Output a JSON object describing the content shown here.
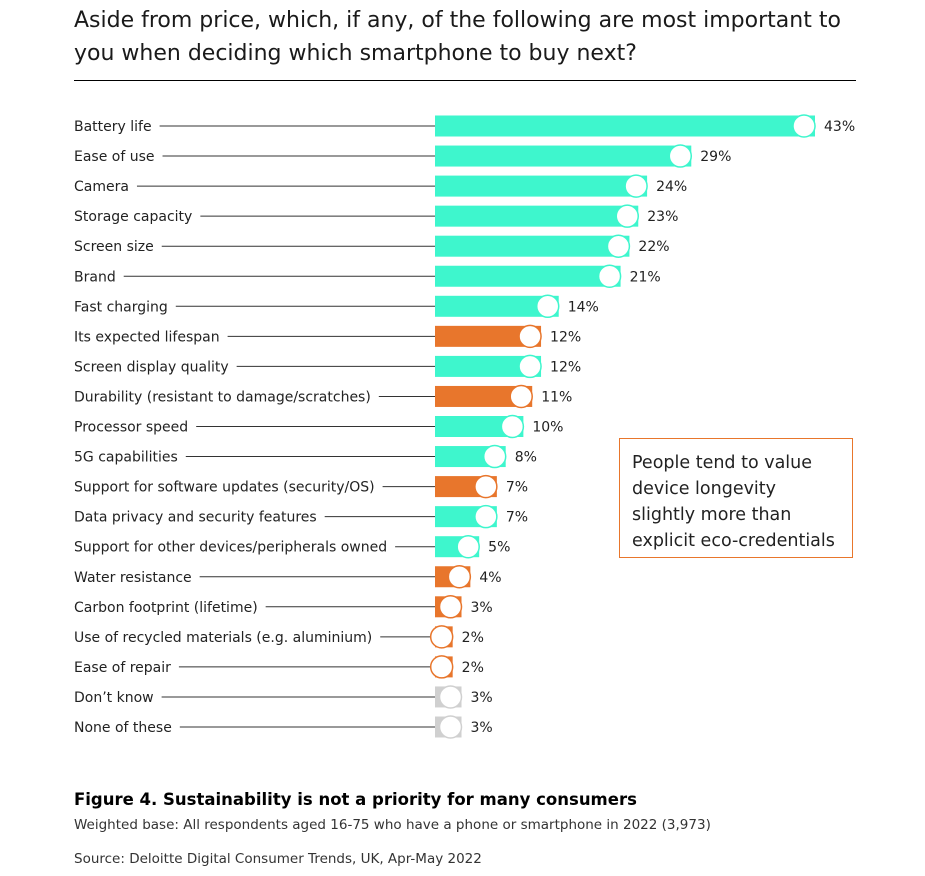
{
  "chart_data": {
    "type": "bar",
    "orientation": "horizontal",
    "title": "Aside from price, which, if any, of the following are most important to you when deciding which smartphone to buy next?",
    "unit": "%",
    "xlim": [
      0,
      43
    ],
    "categories": [
      "Battery life",
      "Ease of use",
      "Camera",
      "Storage capacity",
      "Screen size",
      "Brand",
      "Fast charging",
      "Its expected lifespan",
      "Screen display quality",
      "Durability (resistant to damage/scratches)",
      "Processor speed",
      "5G capabilities",
      "Support for software updates (security/OS)",
      "Data privacy and security features",
      "Support for other devices/peripherals owned",
      "Water resistance",
      "Carbon footprint (lifetime)",
      "Use of recycled materials (e.g. aluminium)",
      "Ease of repair",
      "Don’t know",
      "None of these"
    ],
    "values": [
      43,
      29,
      24,
      23,
      22,
      21,
      14,
      12,
      12,
      11,
      10,
      8,
      7,
      7,
      5,
      4,
      3,
      2,
      2,
      3,
      3
    ],
    "groups": [
      "general",
      "general",
      "general",
      "general",
      "general",
      "general",
      "general",
      "sustainability",
      "general",
      "sustainability",
      "general",
      "general",
      "sustainability",
      "general",
      "general",
      "sustainability",
      "sustainability",
      "sustainability",
      "sustainability",
      "other",
      "other"
    ],
    "colors": {
      "general": "#3ef6cd",
      "sustainability": "#e8762c",
      "other": "#d0d0d0",
      "leader": "#333333",
      "marker": "#ffffff"
    }
  },
  "callout": {
    "text": "People tend to value device longevity slightly more than explicit eco-credentials"
  },
  "figure": {
    "caption": "Figure 4. Sustainability is not a priority for many consumers",
    "base_note": "Weighted base: All respondents aged 16-75 who have a phone or smartphone in 2022 (3,973)",
    "source": "Source: Deloitte Digital Consumer Trends, UK, Apr-May 2022"
  }
}
